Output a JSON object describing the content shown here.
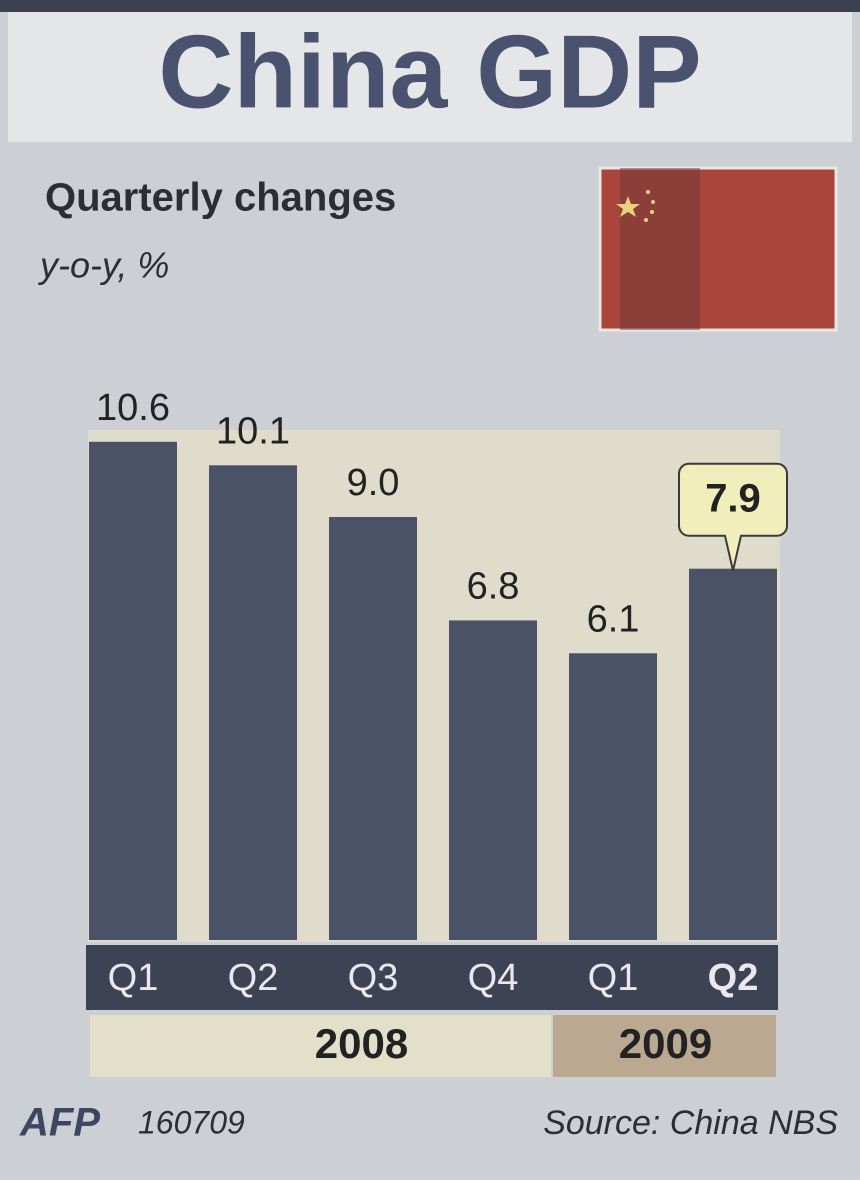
{
  "chart_data": {
    "type": "bar",
    "title": "China GDP",
    "subtitle": "Quarterly changes",
    "unit": "y-o-y, %",
    "groups": [
      {
        "name": "2008",
        "categories": [
          "Q1",
          "Q2",
          "Q3",
          "Q4"
        ]
      },
      {
        "name": "2009",
        "categories": [
          "Q1",
          "Q2"
        ]
      }
    ],
    "values": [
      10.6,
      10.1,
      9.0,
      6.8,
      6.1,
      7.9
    ],
    "value_labels": [
      "10.6",
      "10.1",
      "9.0",
      "6.8",
      "6.1",
      "7.9"
    ],
    "color": "#4b5167",
    "credit": "AFP",
    "date": "160709",
    "source": "Source: China NBS"
  }
}
